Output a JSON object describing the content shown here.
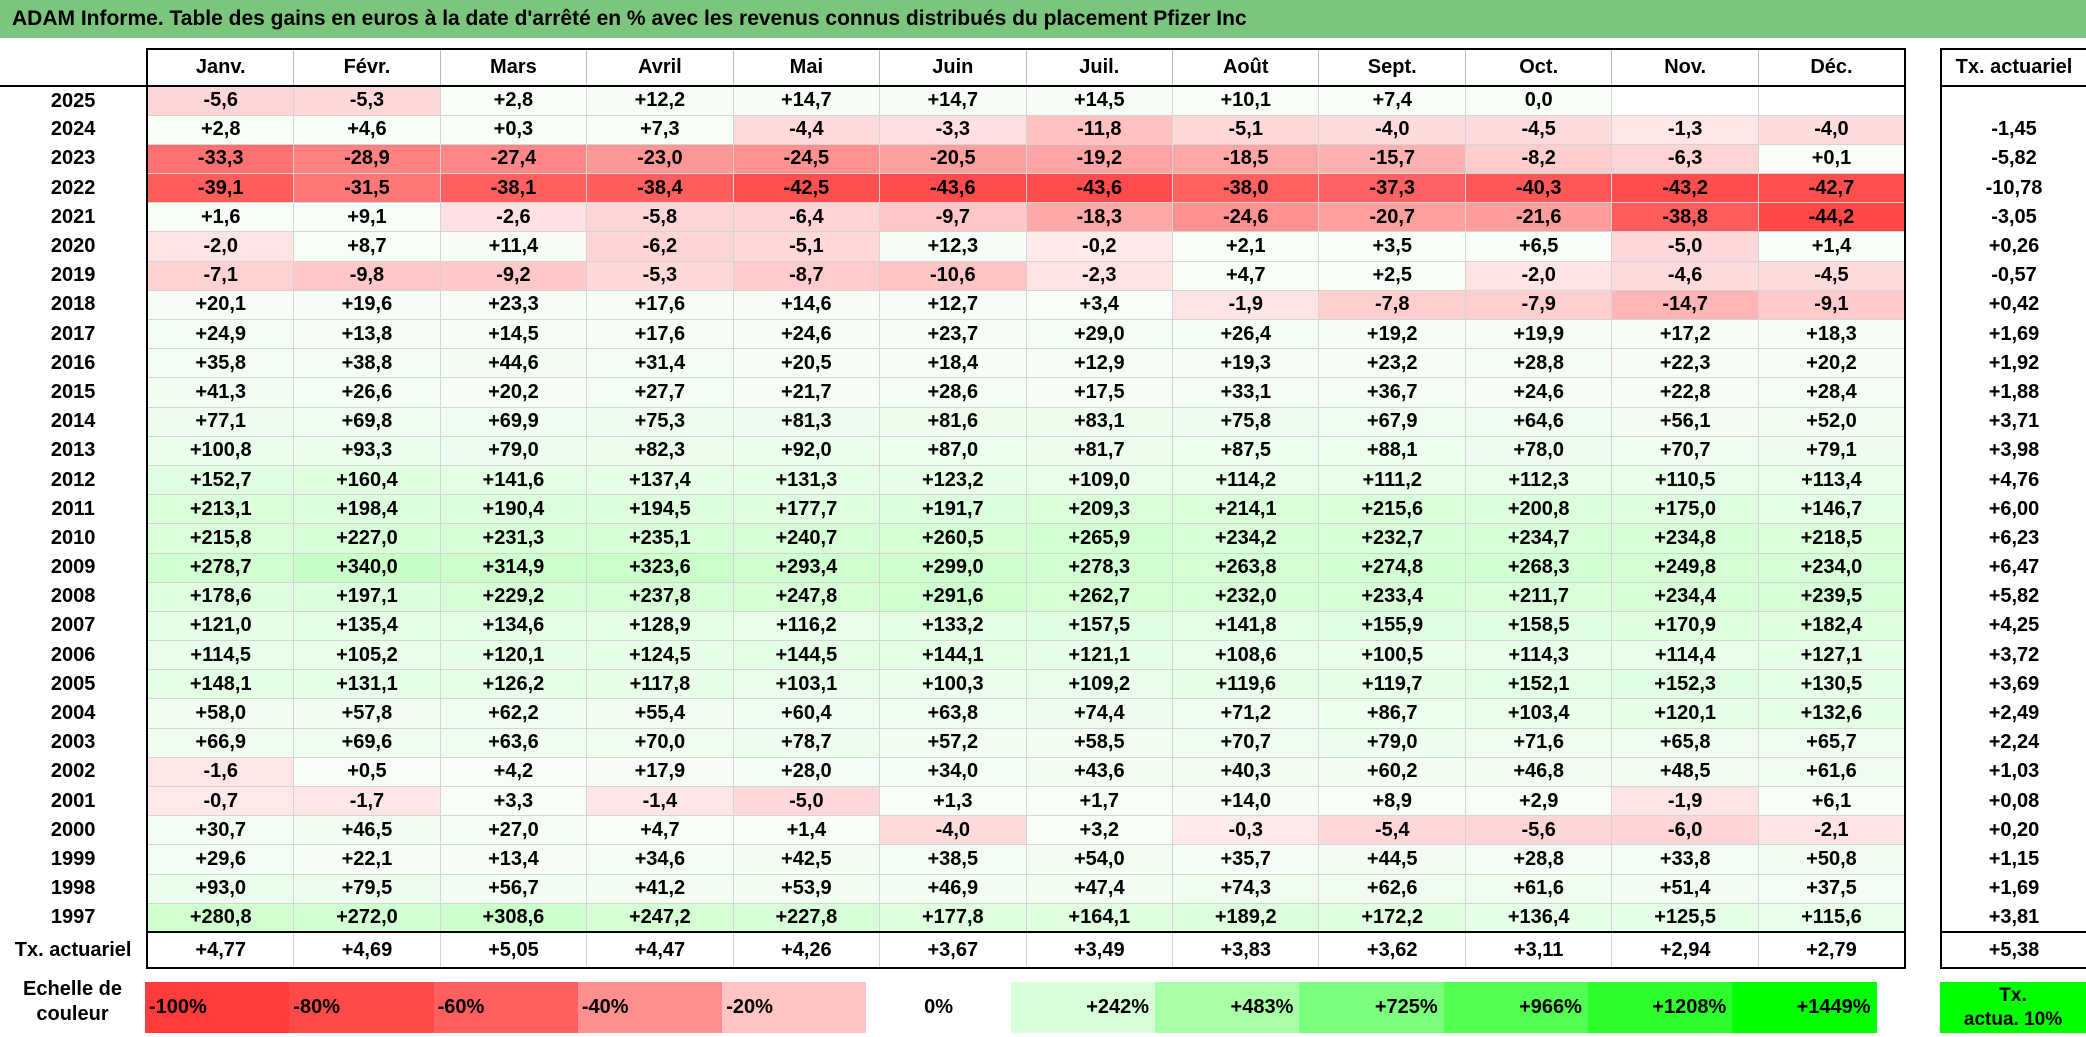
{
  "title": "ADAM Informe. Table des gains en euros à la date d'arrêté en % avec les revenus connus distribués du placement Pfizer Inc",
  "months": [
    "Janv.",
    "Févr.",
    "Mars",
    "Avril",
    "Mai",
    "Juin",
    "Juil.",
    "Août",
    "Sept.",
    "Oct.",
    "Nov.",
    "Déc."
  ],
  "side_header": "Tx. actuariel",
  "rows": [
    {
      "year": "2025",
      "values": [
        "-5,6",
        "-5,3",
        "+2,8",
        "+12,2",
        "+14,7",
        "+14,7",
        "+14,5",
        "+10,1",
        "+7,4",
        "0,0",
        "",
        ""
      ],
      "tx": ""
    },
    {
      "year": "2024",
      "values": [
        "+2,8",
        "+4,6",
        "+0,3",
        "+7,3",
        "-4,4",
        "-3,3",
        "-11,8",
        "-5,1",
        "-4,0",
        "-4,5",
        "-1,3",
        "-4,0"
      ],
      "tx": "-1,45"
    },
    {
      "year": "2023",
      "values": [
        "-33,3",
        "-28,9",
        "-27,4",
        "-23,0",
        "-24,5",
        "-20,5",
        "-19,2",
        "-18,5",
        "-15,7",
        "-8,2",
        "-6,3",
        "+0,1"
      ],
      "tx": "-5,82"
    },
    {
      "year": "2022",
      "values": [
        "-39,1",
        "-31,5",
        "-38,1",
        "-38,4",
        "-42,5",
        "-43,6",
        "-43,6",
        "-38,0",
        "-37,3",
        "-40,3",
        "-43,2",
        "-42,7"
      ],
      "tx": "-10,78"
    },
    {
      "year": "2021",
      "values": [
        "+1,6",
        "+9,1",
        "-2,6",
        "-5,8",
        "-6,4",
        "-9,7",
        "-18,3",
        "-24,6",
        "-20,7",
        "-21,6",
        "-38,8",
        "-44,2"
      ],
      "tx": "-3,05"
    },
    {
      "year": "2020",
      "values": [
        "-2,0",
        "+8,7",
        "+11,4",
        "-6,2",
        "-5,1",
        "+12,3",
        "-0,2",
        "+2,1",
        "+3,5",
        "+6,5",
        "-5,0",
        "+1,4"
      ],
      "tx": "+0,26"
    },
    {
      "year": "2019",
      "values": [
        "-7,1",
        "-9,8",
        "-9,2",
        "-5,3",
        "-8,7",
        "-10,6",
        "-2,3",
        "+4,7",
        "+2,5",
        "-2,0",
        "-4,6",
        "-4,5"
      ],
      "tx": "-0,57"
    },
    {
      "year": "2018",
      "values": [
        "+20,1",
        "+19,6",
        "+23,3",
        "+17,6",
        "+14,6",
        "+12,7",
        "+3,4",
        "-1,9",
        "-7,8",
        "-7,9",
        "-14,7",
        "-9,1"
      ],
      "tx": "+0,42"
    },
    {
      "year": "2017",
      "values": [
        "+24,9",
        "+13,8",
        "+14,5",
        "+17,6",
        "+24,6",
        "+23,7",
        "+29,0",
        "+26,4",
        "+19,2",
        "+19,9",
        "+17,2",
        "+18,3"
      ],
      "tx": "+1,69"
    },
    {
      "year": "2016",
      "values": [
        "+35,8",
        "+38,8",
        "+44,6",
        "+31,4",
        "+20,5",
        "+18,4",
        "+12,9",
        "+19,3",
        "+23,2",
        "+28,8",
        "+22,3",
        "+20,2"
      ],
      "tx": "+1,92"
    },
    {
      "year": "2015",
      "values": [
        "+41,3",
        "+26,6",
        "+20,2",
        "+27,7",
        "+21,7",
        "+28,6",
        "+17,5",
        "+33,1",
        "+36,7",
        "+24,6",
        "+22,8",
        "+28,4"
      ],
      "tx": "+1,88"
    },
    {
      "year": "2014",
      "values": [
        "+77,1",
        "+69,8",
        "+69,9",
        "+75,3",
        "+81,3",
        "+81,6",
        "+83,1",
        "+75,8",
        "+67,9",
        "+64,6",
        "+56,1",
        "+52,0"
      ],
      "tx": "+3,71"
    },
    {
      "year": "2013",
      "values": [
        "+100,8",
        "+93,3",
        "+79,0",
        "+82,3",
        "+92,0",
        "+87,0",
        "+81,7",
        "+87,5",
        "+88,1",
        "+78,0",
        "+70,7",
        "+79,1"
      ],
      "tx": "+3,98"
    },
    {
      "year": "2012",
      "values": [
        "+152,7",
        "+160,4",
        "+141,6",
        "+137,4",
        "+131,3",
        "+123,2",
        "+109,0",
        "+114,2",
        "+111,2",
        "+112,3",
        "+110,5",
        "+113,4"
      ],
      "tx": "+4,76"
    },
    {
      "year": "2011",
      "values": [
        "+213,1",
        "+198,4",
        "+190,4",
        "+194,5",
        "+177,7",
        "+191,7",
        "+209,3",
        "+214,1",
        "+215,6",
        "+200,8",
        "+175,0",
        "+146,7"
      ],
      "tx": "+6,00"
    },
    {
      "year": "2010",
      "values": [
        "+215,8",
        "+227,0",
        "+231,3",
        "+235,1",
        "+240,7",
        "+260,5",
        "+265,9",
        "+234,2",
        "+232,7",
        "+234,7",
        "+234,8",
        "+218,5"
      ],
      "tx": "+6,23"
    },
    {
      "year": "2009",
      "values": [
        "+278,7",
        "+340,0",
        "+314,9",
        "+323,6",
        "+293,4",
        "+299,0",
        "+278,3",
        "+263,8",
        "+274,8",
        "+268,3",
        "+249,8",
        "+234,0"
      ],
      "tx": "+6,47"
    },
    {
      "year": "2008",
      "values": [
        "+178,6",
        "+197,1",
        "+229,2",
        "+237,8",
        "+247,8",
        "+291,6",
        "+262,7",
        "+232,0",
        "+233,4",
        "+211,7",
        "+234,4",
        "+239,5"
      ],
      "tx": "+5,82"
    },
    {
      "year": "2007",
      "values": [
        "+121,0",
        "+135,4",
        "+134,6",
        "+128,9",
        "+116,2",
        "+133,2",
        "+157,5",
        "+141,8",
        "+155,9",
        "+158,5",
        "+170,9",
        "+182,4"
      ],
      "tx": "+4,25"
    },
    {
      "year": "2006",
      "values": [
        "+114,5",
        "+105,2",
        "+120,1",
        "+124,5",
        "+144,5",
        "+144,1",
        "+121,1",
        "+108,6",
        "+100,5",
        "+114,3",
        "+114,4",
        "+127,1"
      ],
      "tx": "+3,72"
    },
    {
      "year": "2005",
      "values": [
        "+148,1",
        "+131,1",
        "+126,2",
        "+117,8",
        "+103,1",
        "+100,3",
        "+109,2",
        "+119,6",
        "+119,7",
        "+152,1",
        "+152,3",
        "+130,5"
      ],
      "tx": "+3,69"
    },
    {
      "year": "2004",
      "values": [
        "+58,0",
        "+57,8",
        "+62,2",
        "+55,4",
        "+60,4",
        "+63,8",
        "+74,4",
        "+71,2",
        "+86,7",
        "+103,4",
        "+120,1",
        "+132,6"
      ],
      "tx": "+2,49"
    },
    {
      "year": "2003",
      "values": [
        "+66,9",
        "+69,6",
        "+63,6",
        "+70,0",
        "+78,7",
        "+57,2",
        "+58,5",
        "+70,7",
        "+79,0",
        "+71,6",
        "+65,8",
        "+65,7"
      ],
      "tx": "+2,24"
    },
    {
      "year": "2002",
      "values": [
        "-1,6",
        "+0,5",
        "+4,2",
        "+17,9",
        "+28,0",
        "+34,0",
        "+43,6",
        "+40,3",
        "+60,2",
        "+46,8",
        "+48,5",
        "+61,6"
      ],
      "tx": "+1,03"
    },
    {
      "year": "2001",
      "values": [
        "-0,7",
        "-1,7",
        "+3,3",
        "-1,4",
        "-5,0",
        "+1,3",
        "+1,7",
        "+14,0",
        "+8,9",
        "+2,9",
        "-1,9",
        "+6,1"
      ],
      "tx": "+0,08"
    },
    {
      "year": "2000",
      "values": [
        "+30,7",
        "+46,5",
        "+27,0",
        "+4,7",
        "+1,4",
        "-4,0",
        "+3,2",
        "-0,3",
        "-5,4",
        "-5,6",
        "-6,0",
        "-2,1"
      ],
      "tx": "+0,20"
    },
    {
      "year": "1999",
      "values": [
        "+29,6",
        "+22,1",
        "+13,4",
        "+34,6",
        "+42,5",
        "+38,5",
        "+54,0",
        "+35,7",
        "+44,5",
        "+28,8",
        "+33,8",
        "+50,8"
      ],
      "tx": "+1,15"
    },
    {
      "year": "1998",
      "values": [
        "+93,0",
        "+79,5",
        "+56,7",
        "+41,2",
        "+53,9",
        "+46,9",
        "+47,4",
        "+74,3",
        "+62,6",
        "+61,6",
        "+51,4",
        "+37,5"
      ],
      "tx": "+1,69"
    },
    {
      "year": "1997",
      "values": [
        "+280,8",
        "+272,0",
        "+308,6",
        "+247,2",
        "+227,8",
        "+177,8",
        "+164,1",
        "+189,2",
        "+172,2",
        "+136,4",
        "+125,5",
        "+115,6"
      ],
      "tx": "+3,81"
    }
  ],
  "avg_row": {
    "label": "Tx. actuariel",
    "values": [
      "+4,77",
      "+4,69",
      "+5,05",
      "+4,47",
      "+4,26",
      "+3,67",
      "+3,49",
      "+3,83",
      "+3,62",
      "+3,11",
      "+2,94",
      "+2,79"
    ],
    "total": "+5,38"
  },
  "scale": {
    "label_line1": "Echelle de",
    "label_line2": "couleur",
    "items": [
      {
        "label": "-100%",
        "color": "#ff3b3b",
        "kind": "neg"
      },
      {
        "label": "-80%",
        "color": "#ff4a4a",
        "kind": "neg"
      },
      {
        "label": "-60%",
        "color": "#ff5f5f",
        "kind": "neg"
      },
      {
        "label": "-40%",
        "color": "#ff8e8e",
        "kind": "neg"
      },
      {
        "label": "-20%",
        "color": "#ffc4c4",
        "kind": "neg"
      },
      {
        "label": "0%",
        "color": "#ffffff",
        "kind": "zero"
      },
      {
        "label": "+242%",
        "color": "#d8ffd8",
        "kind": "pos"
      },
      {
        "label": "+483%",
        "color": "#a8ffa8",
        "kind": "pos"
      },
      {
        "label": "+725%",
        "color": "#7cff7c",
        "kind": "pos"
      },
      {
        "label": "+966%",
        "color": "#52ff52",
        "kind": "pos"
      },
      {
        "label": "+1208%",
        "color": "#2cff2c",
        "kind": "pos"
      },
      {
        "label": "+1449%",
        "color": "#00ff00",
        "kind": "pos"
      }
    ],
    "tx_line1": "Tx.",
    "tx_line2": "actua. 10%",
    "tx_color": "#00ff00"
  }
}
